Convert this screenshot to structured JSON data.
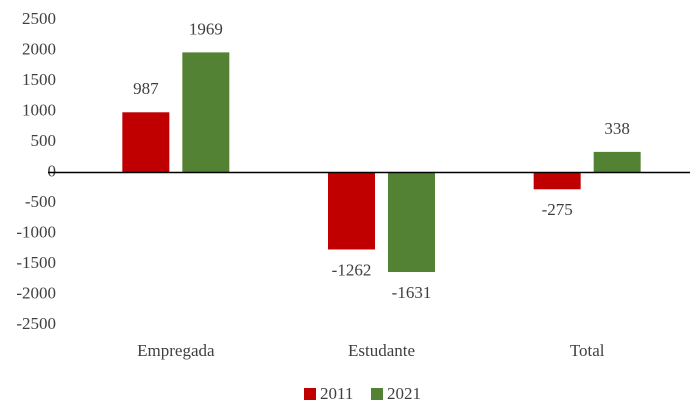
{
  "chart_data": {
    "type": "bar",
    "categories": [
      "Empregada",
      "Estudante",
      "Total"
    ],
    "series": [
      {
        "name": "2011",
        "color": "#c00000",
        "values": [
          987,
          -1262,
          -275
        ]
      },
      {
        "name": "2021",
        "color": "#548235",
        "values": [
          1969,
          -1631,
          338
        ]
      }
    ],
    "ylim": [
      -2500,
      2500
    ],
    "yticks": [
      -2500,
      -2000,
      -1500,
      -1000,
      -500,
      0,
      500,
      1000,
      1500,
      2000,
      2500
    ],
    "grid": false,
    "legend": "bottom"
  }
}
